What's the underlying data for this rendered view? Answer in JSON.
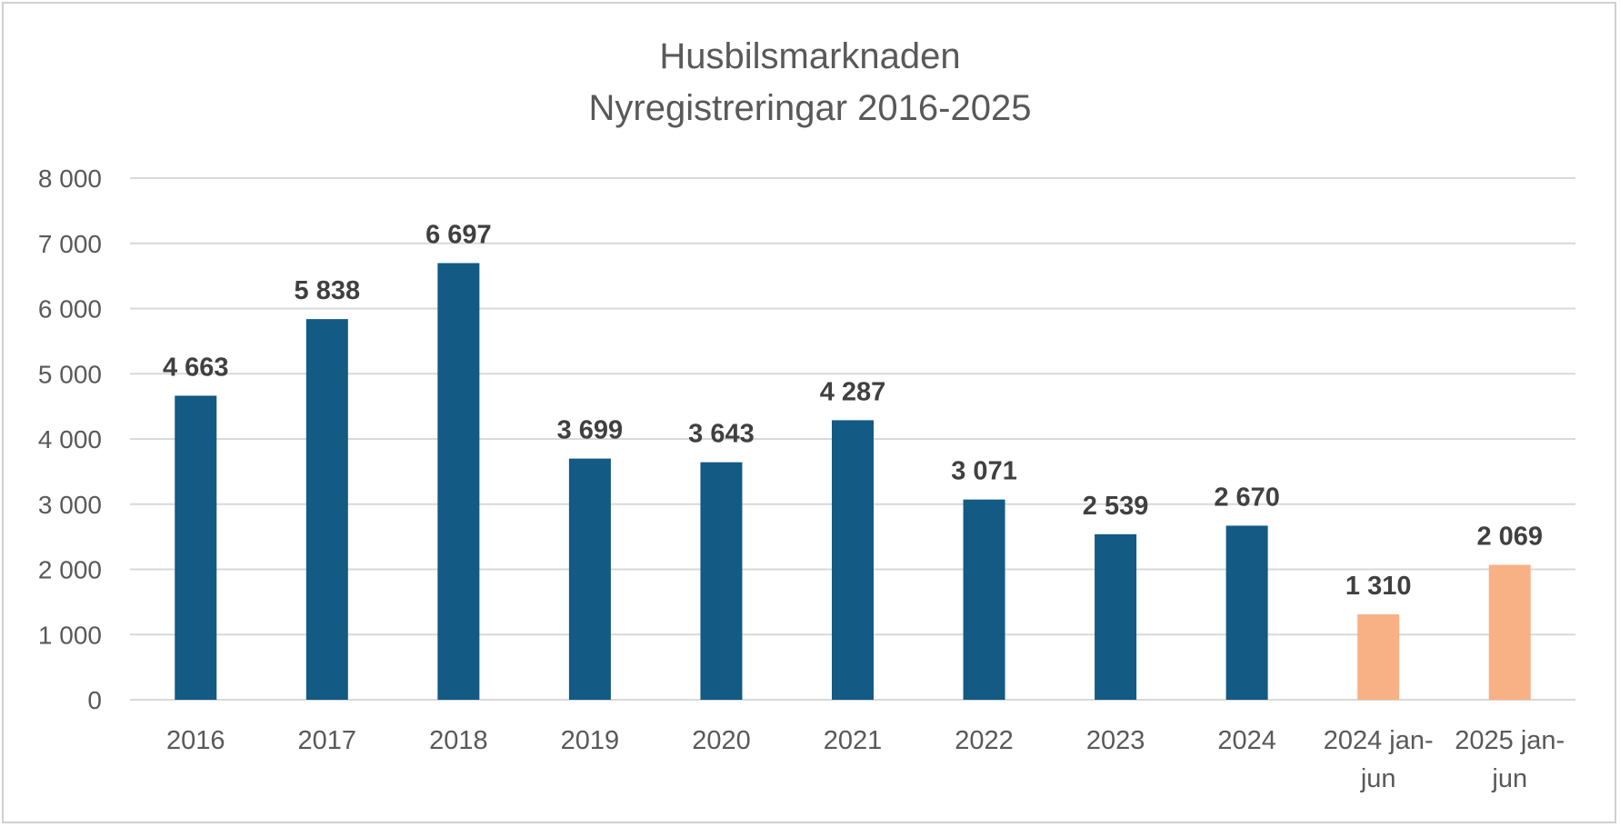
{
  "chart_data": {
    "type": "bar",
    "title": "Husbilsmarknaden",
    "subtitle": "Nyregistreringar 2016-2025",
    "categories": [
      "2016",
      "2017",
      "2018",
      "2019",
      "2020",
      "2021",
      "2022",
      "2023",
      "2024",
      "2024 jan-jun",
      "2025 jan-jun"
    ],
    "category_lines": [
      [
        "2016"
      ],
      [
        "2017"
      ],
      [
        "2018"
      ],
      [
        "2019"
      ],
      [
        "2020"
      ],
      [
        "2021"
      ],
      [
        "2022"
      ],
      [
        "2023"
      ],
      [
        "2024"
      ],
      [
        "2024 jan-",
        "jun"
      ],
      [
        "2025 jan-",
        "jun"
      ]
    ],
    "values": [
      4663,
      5838,
      6697,
      3699,
      3643,
      4287,
      3071,
      2539,
      2670,
      1310,
      2069
    ],
    "value_labels": [
      "4 663",
      "5 838",
      "6 697",
      "3 699",
      "3 643",
      "4 287",
      "3 071",
      "2 539",
      "2 670",
      "1 310",
      "2 069"
    ],
    "bar_colors": [
      "#135a85",
      "#135a85",
      "#135a85",
      "#135a85",
      "#135a85",
      "#135a85",
      "#135a85",
      "#135a85",
      "#135a85",
      "#f8b185",
      "#f8b185"
    ],
    "ylim": [
      0,
      8000
    ],
    "yticks": [
      0,
      1000,
      2000,
      3000,
      4000,
      5000,
      6000,
      7000,
      8000
    ],
    "ytick_labels": [
      "0",
      "1 000",
      "2 000",
      "3 000",
      "4 000",
      "5 000",
      "6 000",
      "7 000",
      "8 000"
    ],
    "xlabel": "",
    "ylabel": "",
    "grid": true,
    "legend": false
  }
}
